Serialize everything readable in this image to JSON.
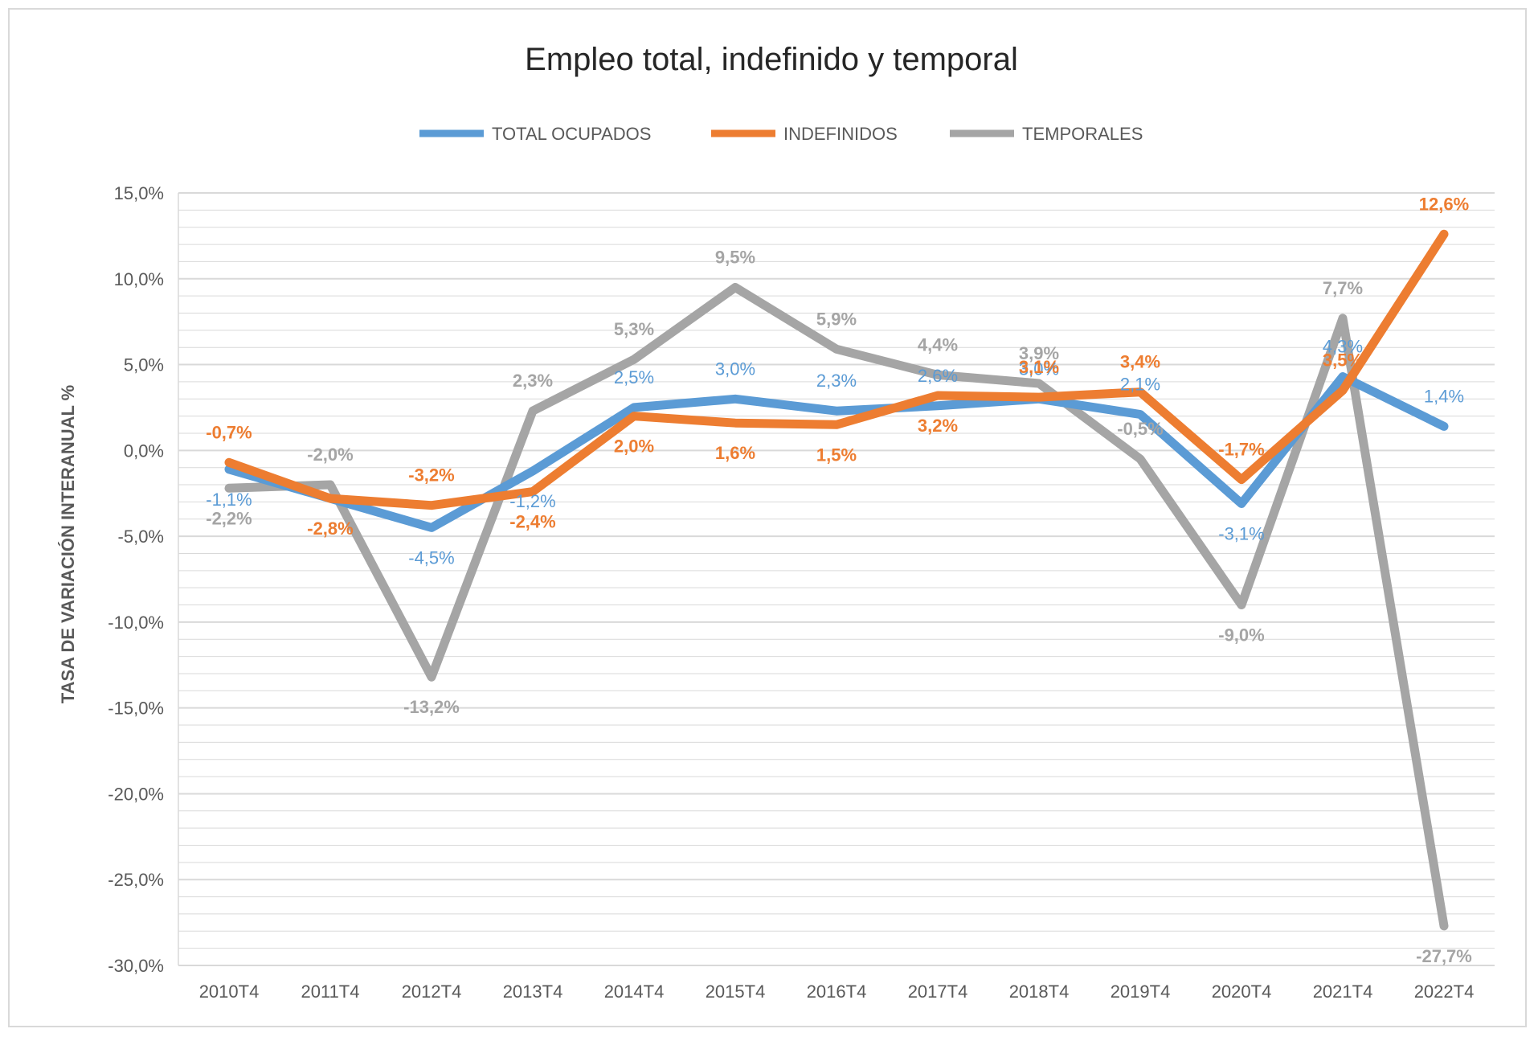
{
  "chart_data": {
    "type": "line",
    "title": "Empleo total, indefinido y temporal",
    "xlabel": "",
    "ylabel": "TASA DE VARIACIÓN INTERANUAL %",
    "ylim": [
      -30,
      15
    ],
    "ytick_step": 5,
    "yticks": [
      "15,0%",
      "10,0%",
      "5,0%",
      "0,0%",
      "-5,0%",
      "-10,0%",
      "-15,0%",
      "-20,0%",
      "-25,0%",
      "-30,0%"
    ],
    "ytick_values": [
      15,
      10,
      5,
      0,
      -5,
      -10,
      -15,
      -20,
      -25,
      -30
    ],
    "categories": [
      "2010T4",
      "2011T4",
      "2012T4",
      "2013T4",
      "2014T4",
      "2015T4",
      "2016T4",
      "2017T4",
      "2018T4",
      "2019T4",
      "2020T4",
      "2021T4",
      "2022T4"
    ],
    "legend_position": "top",
    "grid": true,
    "series": [
      {
        "name": "TOTAL OCUPADOS",
        "color": "#5b9bd5",
        "values": [
          -1.1,
          -2.8,
          -4.5,
          -1.2,
          2.5,
          3.0,
          2.3,
          2.6,
          3.0,
          2.1,
          -3.1,
          4.3,
          1.4
        ],
        "labels": [
          "-1,1%",
          "-2,8%",
          "-4,5%",
          "-1,2%",
          "2,5%",
          "3,0%",
          "2,3%",
          "2,6%",
          "3,0%",
          "2,1%",
          "-3,1%",
          "4,3%",
          "1,4%"
        ]
      },
      {
        "name": "INDEFINIDOS",
        "color": "#ed7d31",
        "values": [
          -0.7,
          -2.8,
          -3.2,
          -2.4,
          2.0,
          1.6,
          1.5,
          3.2,
          3.1,
          3.4,
          -1.7,
          3.5,
          12.6
        ],
        "labels": [
          "-0,7%",
          "-2,8%",
          "-3,2%",
          "-2,4%",
          "2,0%",
          "1,6%",
          "1,5%",
          "3,2%",
          "3,1%",
          "3,4%",
          "-1,7%",
          "3,5%",
          "12,6%"
        ]
      },
      {
        "name": "TEMPORALES",
        "color": "#a5a5a5",
        "values": [
          -2.2,
          -2.0,
          -13.2,
          2.3,
          5.3,
          9.5,
          5.9,
          4.4,
          3.9,
          -0.5,
          -9.0,
          7.7,
          -27.7
        ],
        "labels": [
          "-2,2%",
          "-2,0%",
          "-13,2%",
          "2,3%",
          "5,3%",
          "9,5%",
          "5,9%",
          "4,4%",
          "3,9%",
          "-0,5%",
          "-9,0%",
          "7,7%",
          "-27,7%"
        ]
      }
    ]
  }
}
